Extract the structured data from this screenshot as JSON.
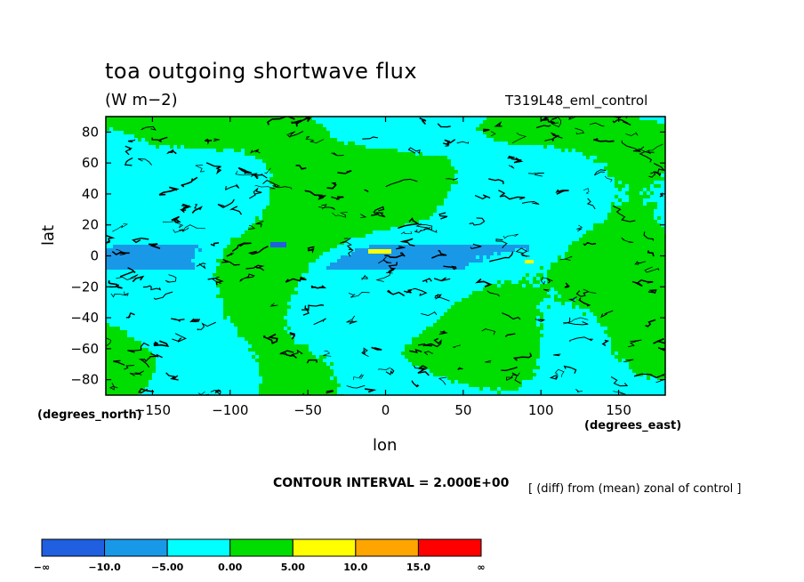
{
  "chart_data": {
    "type": "heatmap",
    "title": "toa outgoing shortwave flux",
    "units": "(W m−2)",
    "run_id": "T319L48_eml_control",
    "xlabel": "lon",
    "ylabel": "lat",
    "xunit_label": "(degrees_east)",
    "yunit_label": "(degrees_north)",
    "xlim": [
      -180,
      180
    ],
    "ylim": [
      -90,
      90
    ],
    "xticks": [
      -150,
      -100,
      -50,
      0,
      50,
      100,
      150
    ],
    "xtick_labels": [
      "−150",
      "−100",
      "−50",
      "0",
      "50",
      "100",
      "150"
    ],
    "yticks": [
      80,
      60,
      40,
      20,
      0,
      -20,
      -40,
      -60,
      -80
    ],
    "ytick_labels": [
      "80",
      "60",
      "40",
      "20",
      "0",
      "−20",
      "−40",
      "−60",
      "−80"
    ],
    "contour_interval_label": "CONTOUR INTERVAL = 2.000E+00",
    "annotation": "[ (diff) from (mean) zonal of control ]",
    "colorbar": {
      "colors": [
        "#1f5fe0",
        "#1a98e8",
        "#00ffff",
        "#00dd00",
        "#ffff00",
        "#ffa500",
        "#ff0000"
      ],
      "labels": [
        "−∞",
        "−10.0",
        "−5.00",
        "0.00",
        "5.00",
        "10.0",
        "15.0",
        "∞"
      ]
    }
  }
}
